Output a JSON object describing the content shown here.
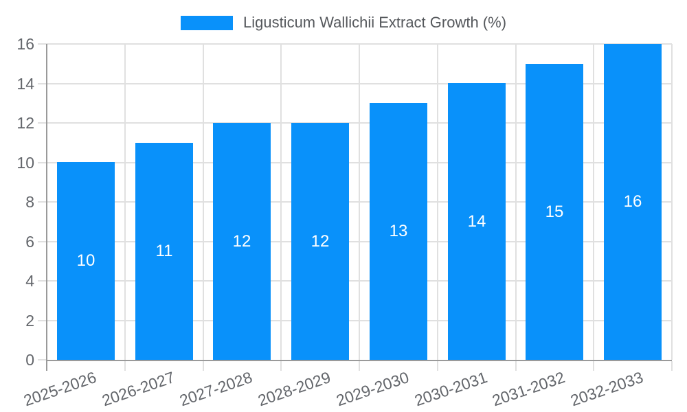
{
  "chart_data": {
    "type": "bar",
    "title": "Ligusticum Wallichii Extract Growth (%)",
    "categories": [
      "2025-2026",
      "2026-2027",
      "2027-2028",
      "2028-2029",
      "2029-2030",
      "2030-2031",
      "2031-2032",
      "2032-2033"
    ],
    "values": [
      10,
      11,
      12,
      12,
      13,
      14,
      15,
      16
    ],
    "xlabel": "",
    "ylabel": "",
    "ylim": [
      0,
      16
    ],
    "yticks": [
      0,
      2,
      4,
      6,
      8,
      10,
      12,
      14,
      16
    ],
    "grid": "horizontal and vertical light gridlines",
    "legend_position": "top-center",
    "legend_entries": [
      "Ligusticum Wallichii Extract Growth (%)"
    ],
    "data_labels": "values shown in white, centered inside bars",
    "colors": {
      "bar": "#0991fa",
      "grid": "#e0e0e0",
      "axis_line": "#9a9a9a",
      "axis_text": "#63666b",
      "title_text": "#55585c",
      "value_label": "#ffffff",
      "background": "#ffffff"
    }
  }
}
